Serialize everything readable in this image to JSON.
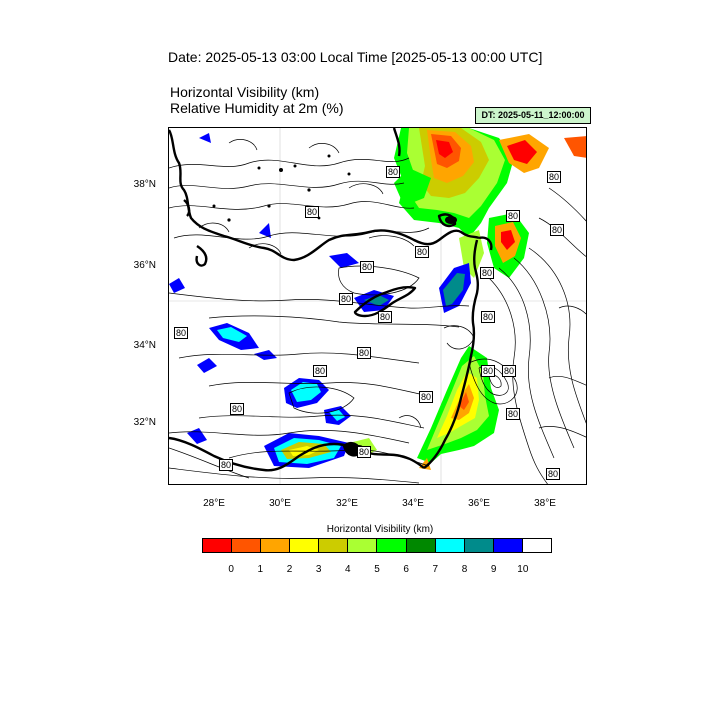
{
  "header": {
    "date_line": "Date: 2025-05-13  03:00 Local Time [2025-05-13  00:00 UTC]",
    "title_line1": "Horizontal Visibility   (km)",
    "title_line2": "Relative Humidity at 2m   (%)",
    "dt_badge": "DT: 2025-05-11_12:00:00"
  },
  "map": {
    "lat_labels": [
      "38°N",
      "36°N",
      "34°N",
      "32°N"
    ],
    "lon_labels": [
      "28°E",
      "30°E",
      "32°E",
      "34°E",
      "36°E",
      "38°E"
    ],
    "contour_labels": [
      "80",
      "80",
      "80",
      "80",
      "80",
      "80",
      "80",
      "80",
      "80",
      "80",
      "80",
      "80",
      "80",
      "80",
      "80",
      "80",
      "80",
      "80",
      "80",
      "80",
      "80",
      "80"
    ]
  },
  "colorbar": {
    "title": "Horizontal Visibility  (km)",
    "colors": [
      "#ff0000",
      "#ff5500",
      "#ffa500",
      "#ffff00",
      "#cccc00",
      "#aaff33",
      "#00ff00",
      "#008800",
      "#00ffff",
      "#008b8b",
      "#0000ff",
      "#ffffff"
    ],
    "ticks": [
      "0",
      "1",
      "2",
      "3",
      "4",
      "5",
      "6",
      "7",
      "8",
      "9",
      "10"
    ]
  }
}
